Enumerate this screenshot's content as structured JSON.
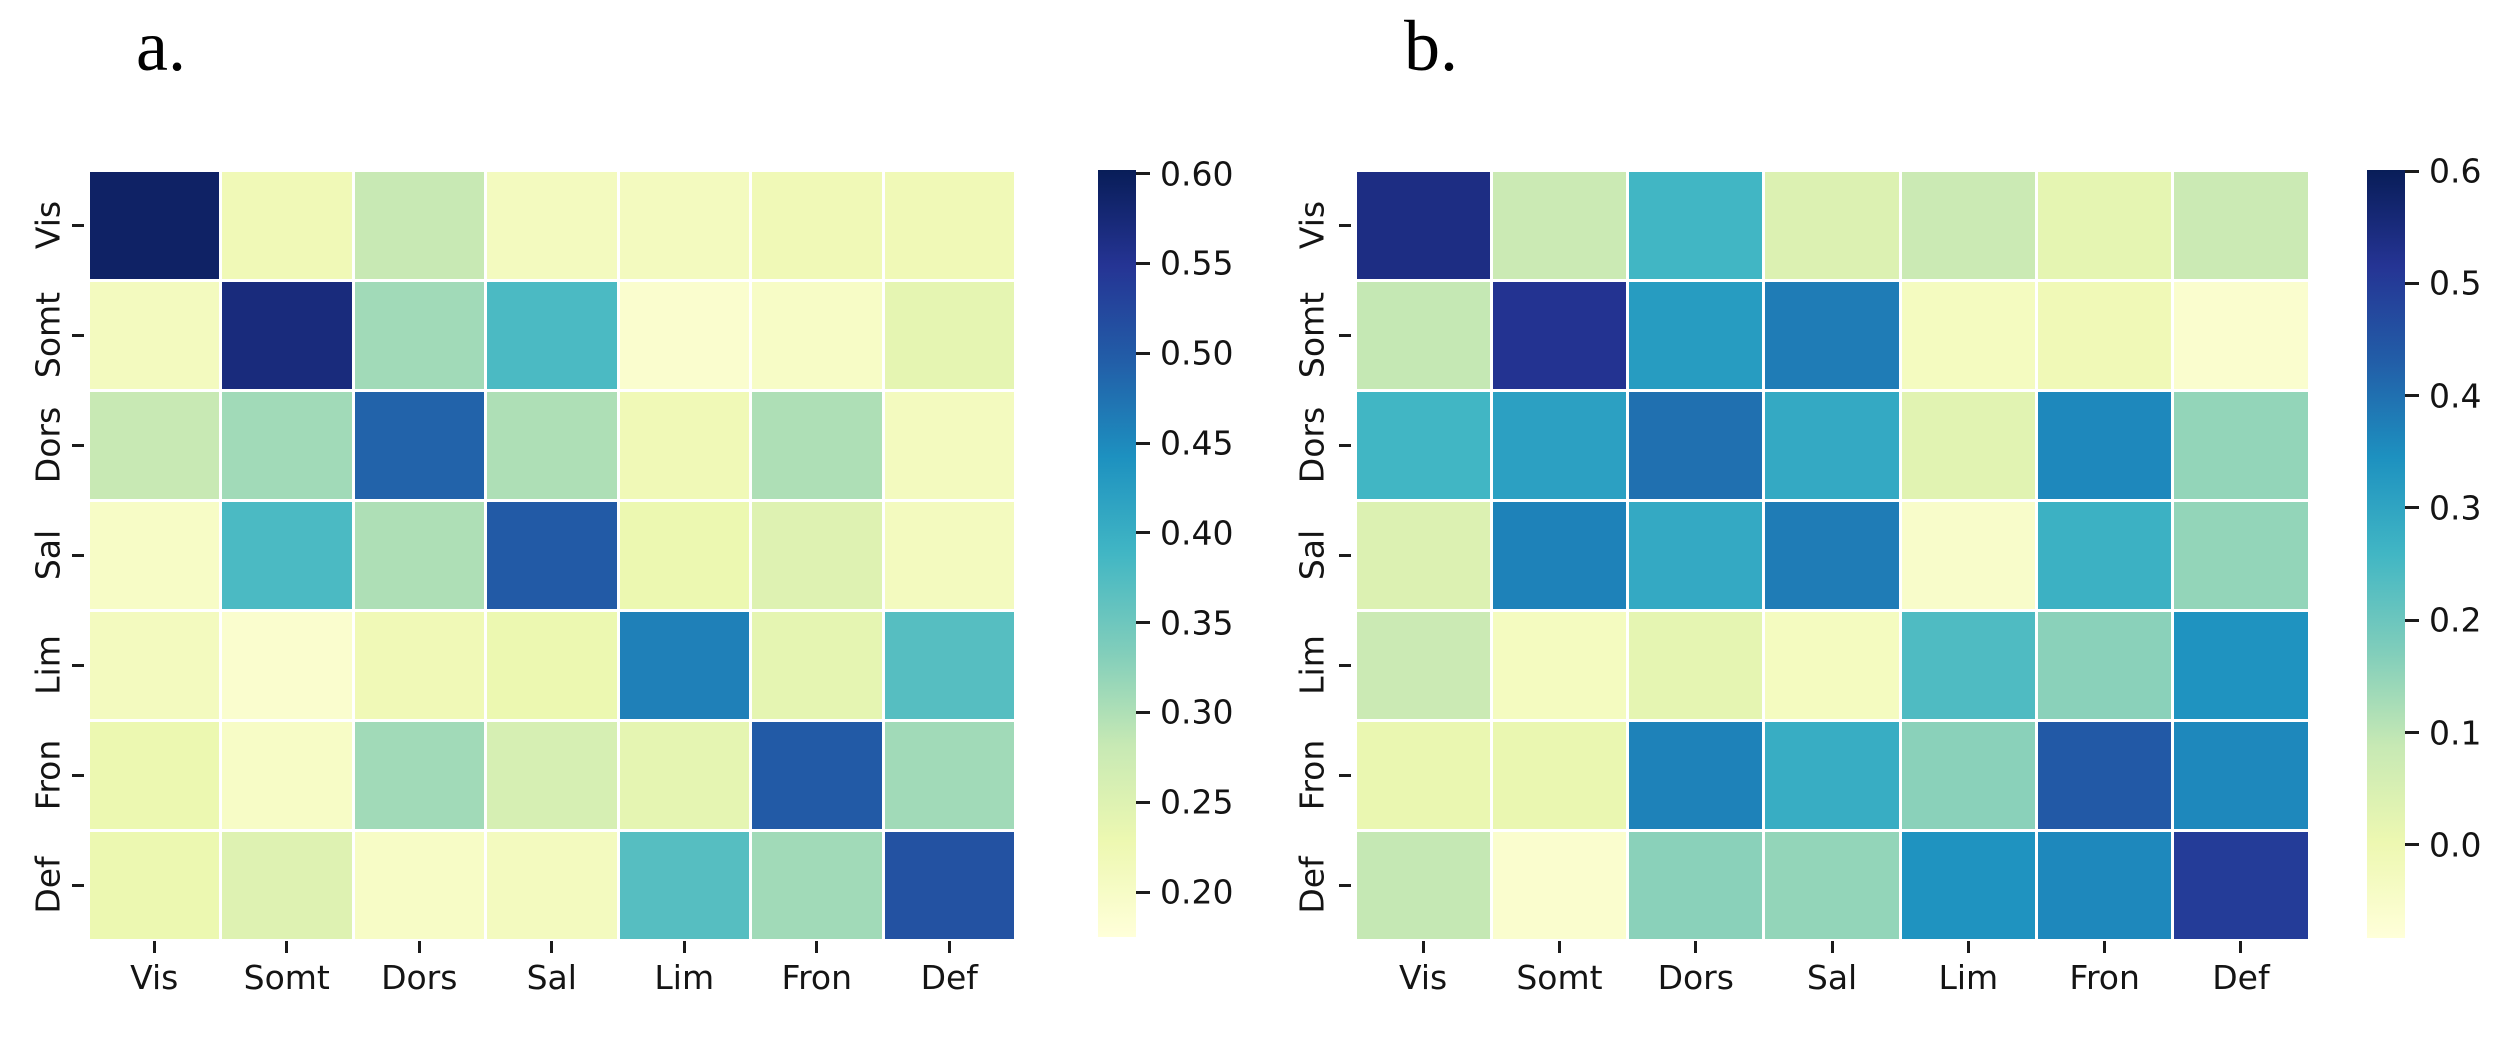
{
  "figure": {
    "background": "#ffffff",
    "text_color": "#141414",
    "colormap_name": "YlGnBu",
    "colormap_anchors": [
      "#ffffd9",
      "#edf8b1",
      "#c7e9b4",
      "#7fcdbb",
      "#41b6c4",
      "#1d91c0",
      "#225ea8",
      "#253494",
      "#081d58"
    ],
    "cell_gridline_color": "#ffffff"
  },
  "chart_data": [
    {
      "id": "a",
      "type": "heatmap",
      "panel_label": "a.",
      "x_tick_labels": [
        "Vis",
        "Somt",
        "Dors",
        "Sal",
        "Lim",
        "Fron",
        "Def"
      ],
      "y_tick_labels": [
        "Vis",
        "Somt",
        "Dors",
        "Sal",
        "Lim",
        "Fron",
        "Def"
      ],
      "values": [
        [
          0.59,
          0.22,
          0.28,
          0.21,
          0.21,
          0.22,
          0.22
        ],
        [
          0.21,
          0.57,
          0.31,
          0.38,
          0.19,
          0.2,
          0.24
        ],
        [
          0.28,
          0.31,
          0.49,
          0.3,
          0.22,
          0.3,
          0.21
        ],
        [
          0.2,
          0.38,
          0.3,
          0.5,
          0.23,
          0.25,
          0.21
        ],
        [
          0.21,
          0.19,
          0.22,
          0.23,
          0.46,
          0.24,
          0.37
        ],
        [
          0.23,
          0.2,
          0.31,
          0.26,
          0.24,
          0.5,
          0.31
        ],
        [
          0.23,
          0.25,
          0.2,
          0.21,
          0.37,
          0.31,
          0.51
        ]
      ],
      "color_scale": {
        "vmin": 0.175,
        "vmax": 0.602
      },
      "colorbar": {
        "tick_values": [
          0.6,
          0.55,
          0.5,
          0.45,
          0.4,
          0.35,
          0.3,
          0.25,
          0.2
        ],
        "tick_labels": [
          "0.60",
          "0.55",
          "0.50",
          "0.45",
          "0.40",
          "0.35",
          "0.30",
          "0.25",
          "0.20"
        ],
        "position": "right"
      },
      "grid_on": false,
      "legend": "none"
    },
    {
      "id": "b",
      "type": "heatmap",
      "panel_label": "b.",
      "x_tick_labels": [
        "Vis",
        "Somt",
        "Dors",
        "Sal",
        "Lim",
        "Fron",
        "Def"
      ],
      "y_tick_labels": [
        "Vis",
        "Somt",
        "Dors",
        "Sal",
        "Lim",
        "Fron",
        "Def"
      ],
      "values": [
        [
          0.54,
          0.08,
          0.26,
          0.04,
          0.08,
          0.02,
          0.08
        ],
        [
          0.09,
          0.52,
          0.32,
          0.38,
          -0.03,
          -0.01,
          -0.06
        ],
        [
          0.26,
          0.31,
          0.4,
          0.29,
          0.03,
          0.36,
          0.15
        ],
        [
          0.04,
          0.37,
          0.29,
          0.38,
          -0.05,
          0.27,
          0.15
        ],
        [
          0.08,
          -0.03,
          0.02,
          -0.03,
          0.24,
          0.16,
          0.34
        ],
        [
          0.01,
          0.01,
          0.37,
          0.28,
          0.16,
          0.44,
          0.36
        ],
        [
          0.09,
          -0.06,
          0.16,
          0.15,
          0.34,
          0.36,
          0.5
        ]
      ],
      "color_scale": {
        "vmin": -0.083,
        "vmax": 0.601
      },
      "colorbar": {
        "tick_values": [
          0.6,
          0.5,
          0.4,
          0.3,
          0.2,
          0.1,
          0.0
        ],
        "tick_labels": [
          "0.6",
          "0.5",
          "0.4",
          "0.3",
          "0.2",
          "0.1",
          "0.0"
        ],
        "position": "right"
      },
      "grid_on": false,
      "legend": "none"
    }
  ]
}
